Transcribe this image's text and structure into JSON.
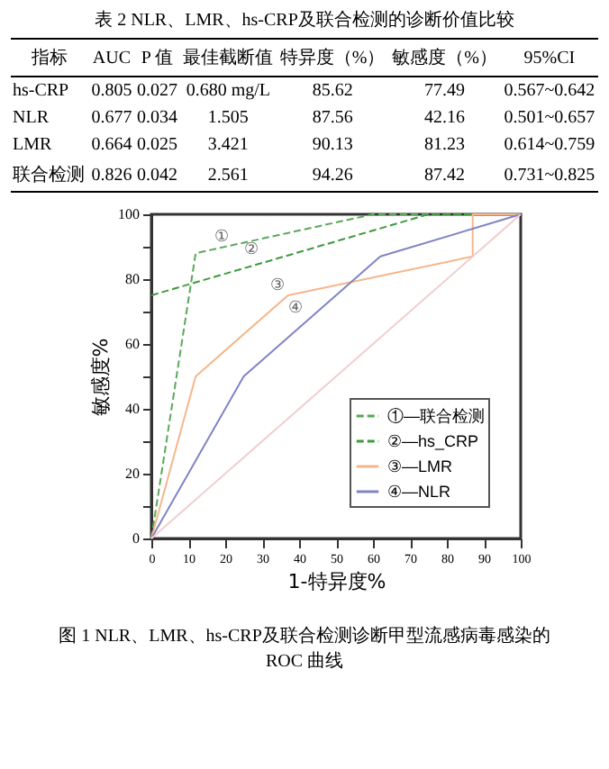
{
  "chart_data": [
    {
      "type": "other",
      "title": "表 2 NLR、LMR、hs-CRP及联合检测的诊断价值比较",
      "categories": [
        "指标",
        "AUC",
        "P 值",
        "最佳截断值",
        "特异度（%）",
        "敏感度（%）",
        "95%CI"
      ],
      "y_categories": [
        "hs-CRP",
        "NLR",
        "LMR",
        "联合检测"
      ],
      "cell_labels": [
        [
          "0.805",
          "0.027",
          "0.680 mg/L",
          "85.62",
          "77.49",
          "0.567~0.642"
        ],
        [
          "0.677",
          "0.034",
          "1.505",
          "87.56",
          "42.16",
          "0.501~0.657"
        ],
        [
          "0.664",
          "0.025",
          "3.421",
          "90.13",
          "81.23",
          "0.614~0.759"
        ],
        [
          "0.826",
          "0.042",
          "2.561",
          "94.26",
          "87.42",
          "0.731~0.825"
        ]
      ]
    },
    {
      "type": "line",
      "title": "图 1 NLR、LMR、hs-CRP及联合检测诊断甲型流感病毒感染的ROC 曲线",
      "xlabel": "1-特异度%",
      "ylabel": "敏感度%",
      "xlim": [
        0,
        100
      ],
      "ylim": [
        0,
        100
      ],
      "xticks": [
        0,
        10,
        20,
        30,
        40,
        50,
        60,
        70,
        80,
        90,
        100
      ],
      "yticks": [
        0,
        {
          "value": 10,
          "label": null
        },
        20,
        {
          "value": 30,
          "label": null
        },
        40,
        {
          "value": 50,
          "label": null
        },
        60,
        {
          "value": 70,
          "label": null
        },
        80,
        {
          "value": 90,
          "label": null
        },
        100
      ],
      "grid": false,
      "legend": "bottom right",
      "marker": "none",
      "series": [
        {
          "name": "①—联合检测",
          "color": "#5aa85a",
          "line_style": "dashed",
          "x": [
            0,
            12,
            60,
            100
          ],
          "values": [
            0,
            88,
            100,
            100
          ]
        },
        {
          "name": "②—hs_CRP",
          "color": "#3f9a3f",
          "line_style": "dashed",
          "x": [
            0,
            75,
            100
          ],
          "values": [
            75,
            100,
            100
          ]
        },
        {
          "name": "③—LMR",
          "color": "#f5b68a",
          "line_style": "solid",
          "x": [
            0,
            12,
            37,
            87,
            87,
            100
          ],
          "values": [
            0,
            50,
            75,
            87,
            100,
            100
          ]
        },
        {
          "name": "④—NLR",
          "color": "#7f84c4",
          "line_style": "solid",
          "x": [
            0,
            25,
            62,
            100
          ],
          "values": [
            0,
            50,
            87,
            100
          ]
        },
        {
          "color": "#f2cccc",
          "line_style": "solid",
          "x": [
            0,
            100
          ],
          "values": [
            0,
            100
          ]
        }
      ],
      "annotations": [
        {
          "text": "①",
          "x": 22,
          "y": 90
        },
        {
          "text": "②",
          "x": 30,
          "y": 86
        },
        {
          "text": "③",
          "x": 37,
          "y": 75
        },
        {
          "text": "④",
          "x": 42,
          "y": 68
        }
      ]
    }
  ]
}
